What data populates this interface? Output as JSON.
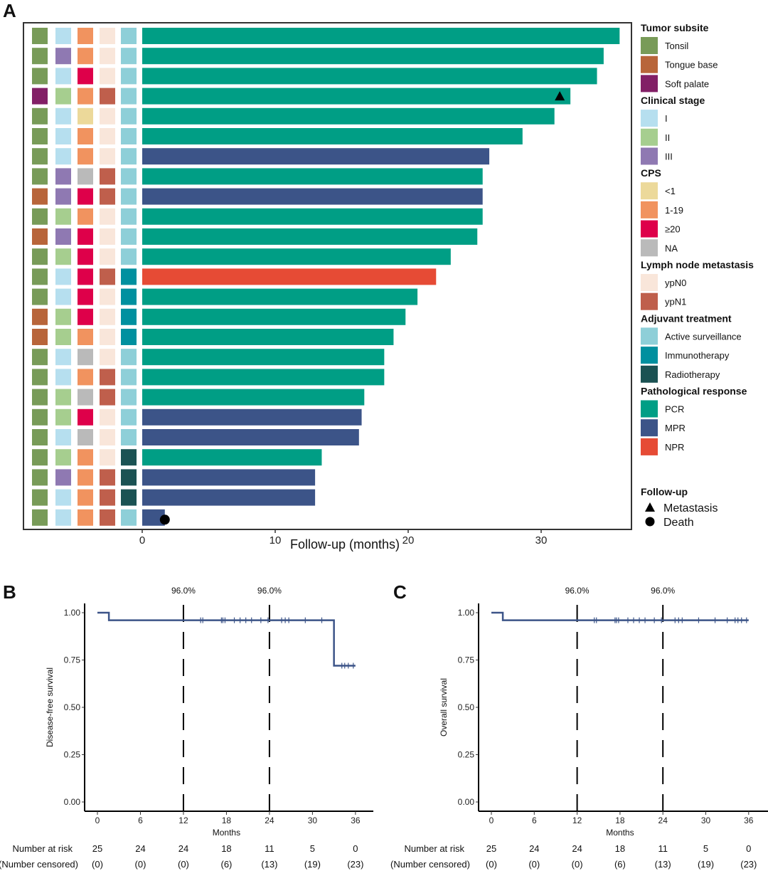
{
  "chart_data": [
    {
      "panel": "A",
      "type": "bar",
      "orientation": "horizontal",
      "title": "",
      "xlabel": "Follow-up (months)",
      "xlim": [
        0,
        36
      ],
      "xticks": [
        0,
        10,
        20,
        30
      ],
      "legend": [
        {
          "title": "Tumor subsite",
          "items": [
            {
              "label": "Tonsil",
              "color": "#789B58"
            },
            {
              "label": "Tongue base",
              "color": "#B8653A"
            },
            {
              "label": "Soft palate",
              "color": "#821F66"
            }
          ]
        },
        {
          "title": "Clinical stage",
          "items": [
            {
              "label": "I",
              "color": "#B6DFEF"
            },
            {
              "label": "II",
              "color": "#A6CE8F"
            },
            {
              "label": "III",
              "color": "#8F79B2"
            }
          ]
        },
        {
          "title": "CPS",
          "items": [
            {
              "label": "<1",
              "color": "#ECD99A"
            },
            {
              "label": "1-19",
              "color": "#F1935F"
            },
            {
              "label": "≥20",
              "color": "#DE004A"
            },
            {
              "label": "NA",
              "color": "#BABABA"
            }
          ]
        },
        {
          "title": "Lymph node metastasis",
          "items": [
            {
              "label": "ypN0",
              "color": "#F9E6DA"
            },
            {
              "label": "ypN1",
              "color": "#BF5F4C"
            }
          ]
        },
        {
          "title": "Adjuvant treatment",
          "items": [
            {
              "label": "Active surveillance",
              "color": "#8ECFD8"
            },
            {
              "label": "Immunotherapy",
              "color": "#00909F"
            },
            {
              "label": "Radiotherapy",
              "color": "#1B5253"
            }
          ]
        },
        {
          "title": "Pathological response",
          "items": [
            {
              "label": "PCR",
              "color": "#009E85"
            },
            {
              "label": "MPR",
              "color": "#3C5488"
            },
            {
              "label": "NPR",
              "color": "#E64B35"
            }
          ]
        }
      ],
      "followup_legend": {
        "title": "Follow-up",
        "items": [
          {
            "label": "Metastasis",
            "symbol": "triangle"
          },
          {
            "label": "Death",
            "symbol": "circle"
          }
        ]
      },
      "patients": [
        {
          "subsite": "Tonsil",
          "stage": "I",
          "cps": "1-19",
          "ln": "ypN0",
          "adjuvant": "Active surveillance",
          "response": "PCR",
          "followup": 35.9
        },
        {
          "subsite": "Tonsil",
          "stage": "III",
          "cps": "1-19",
          "ln": "ypN0",
          "adjuvant": "Active surveillance",
          "response": "PCR",
          "followup": 34.7
        },
        {
          "subsite": "Tonsil",
          "stage": "I",
          "cps": "≥20",
          "ln": "ypN0",
          "adjuvant": "Active surveillance",
          "response": "PCR",
          "followup": 34.2
        },
        {
          "subsite": "Soft palate",
          "stage": "II",
          "cps": "1-19",
          "ln": "ypN1",
          "adjuvant": "Active surveillance",
          "response": "PCR",
          "followup": 32.2,
          "event": "Metastasis",
          "event_time": 31.4
        },
        {
          "subsite": "Tonsil",
          "stage": "I",
          "cps": "<1",
          "ln": "ypN0",
          "adjuvant": "Active surveillance",
          "response": "PCR",
          "followup": 31.0
        },
        {
          "subsite": "Tonsil",
          "stage": "I",
          "cps": "1-19",
          "ln": "ypN0",
          "adjuvant": "Active surveillance",
          "response": "PCR",
          "followup": 28.6
        },
        {
          "subsite": "Tonsil",
          "stage": "I",
          "cps": "1-19",
          "ln": "ypN0",
          "adjuvant": "Active surveillance",
          "response": "MPR",
          "followup": 26.1
        },
        {
          "subsite": "Tonsil",
          "stage": "III",
          "cps": "NA",
          "ln": "ypN1",
          "adjuvant": "Active surveillance",
          "response": "PCR",
          "followup": 25.6
        },
        {
          "subsite": "Tongue base",
          "stage": "III",
          "cps": "≥20",
          "ln": "ypN1",
          "adjuvant": "Active surveillance",
          "response": "MPR",
          "followup": 25.6
        },
        {
          "subsite": "Tonsil",
          "stage": "II",
          "cps": "1-19",
          "ln": "ypN0",
          "adjuvant": "Active surveillance",
          "response": "PCR",
          "followup": 25.6
        },
        {
          "subsite": "Tongue base",
          "stage": "III",
          "cps": "≥20",
          "ln": "ypN0",
          "adjuvant": "Active surveillance",
          "response": "PCR",
          "followup": 25.2
        },
        {
          "subsite": "Tonsil",
          "stage": "II",
          "cps": "≥20",
          "ln": "ypN0",
          "adjuvant": "Active surveillance",
          "response": "PCR",
          "followup": 23.2
        },
        {
          "subsite": "Tonsil",
          "stage": "I",
          "cps": "≥20",
          "ln": "ypN1",
          "adjuvant": "Immunotherapy",
          "response": "NPR",
          "followup": 22.1
        },
        {
          "subsite": "Tonsil",
          "stage": "I",
          "cps": "≥20",
          "ln": "ypN0",
          "adjuvant": "Immunotherapy",
          "response": "PCR",
          "followup": 20.7
        },
        {
          "subsite": "Tongue base",
          "stage": "II",
          "cps": "≥20",
          "ln": "ypN0",
          "adjuvant": "Immunotherapy",
          "response": "PCR",
          "followup": 19.8
        },
        {
          "subsite": "Tongue base",
          "stage": "II",
          "cps": "1-19",
          "ln": "ypN0",
          "adjuvant": "Immunotherapy",
          "response": "PCR",
          "followup": 18.9
        },
        {
          "subsite": "Tonsil",
          "stage": "I",
          "cps": "NA",
          "ln": "ypN0",
          "adjuvant": "Active surveillance",
          "response": "PCR",
          "followup": 18.2
        },
        {
          "subsite": "Tonsil",
          "stage": "I",
          "cps": "1-19",
          "ln": "ypN1",
          "adjuvant": "Active surveillance",
          "response": "PCR",
          "followup": 18.2
        },
        {
          "subsite": "Tonsil",
          "stage": "II",
          "cps": "NA",
          "ln": "ypN1",
          "adjuvant": "Active surveillance",
          "response": "PCR",
          "followup": 16.7
        },
        {
          "subsite": "Tonsil",
          "stage": "II",
          "cps": "≥20",
          "ln": "ypN0",
          "adjuvant": "Active surveillance",
          "response": "MPR",
          "followup": 16.5
        },
        {
          "subsite": "Tonsil",
          "stage": "I",
          "cps": "NA",
          "ln": "ypN0",
          "adjuvant": "Active surveillance",
          "response": "MPR",
          "followup": 16.3
        },
        {
          "subsite": "Tonsil",
          "stage": "II",
          "cps": "1-19",
          "ln": "ypN0",
          "adjuvant": "Radiotherapy",
          "response": "PCR",
          "followup": 13.5
        },
        {
          "subsite": "Tonsil",
          "stage": "III",
          "cps": "1-19",
          "ln": "ypN1",
          "adjuvant": "Radiotherapy",
          "response": "MPR",
          "followup": 13.0
        },
        {
          "subsite": "Tonsil",
          "stage": "I",
          "cps": "1-19",
          "ln": "ypN1",
          "adjuvant": "Radiotherapy",
          "response": "MPR",
          "followup": 13.0
        },
        {
          "subsite": "Tonsil",
          "stage": "I",
          "cps": "1-19",
          "ln": "ypN1",
          "adjuvant": "Active surveillance",
          "response": "MPR",
          "followup": 1.7,
          "event": "Death",
          "event_time": 1.7
        }
      ]
    },
    {
      "panel": "B",
      "type": "line",
      "subtype": "kaplan-meier",
      "ylabel": "Disease-free survival",
      "xlabel": "Months",
      "xlim": [
        0,
        36
      ],
      "ylim": [
        0,
        1
      ],
      "xticks": [
        0,
        6,
        12,
        18,
        24,
        30,
        36
      ],
      "yticks": [
        "0.00",
        "0.25",
        "0.50",
        "0.75",
        "1.00"
      ],
      "line_color": "#3C5488",
      "steps": [
        [
          0,
          1.0
        ],
        [
          1.6,
          0.96
        ],
        [
          33.0,
          0.72
        ],
        [
          36,
          0.72
        ]
      ],
      "censor_times": [
        14.4,
        14.7,
        17.3,
        17.5,
        17.8,
        19.1,
        19.9,
        20.7,
        21.5,
        22.8,
        23.8,
        25.7,
        26.2,
        26.7,
        29.0,
        31.3,
        34.1,
        34.5,
        35.0,
        35.7
      ],
      "reference_lines": [
        {
          "x": 12,
          "label": "96.0%"
        },
        {
          "x": 24,
          "label": "96.0%"
        }
      ],
      "risk_table": {
        "row_labels": [
          "Number at risk",
          "(Number censored)"
        ],
        "at_risk": [
          "25",
          "24",
          "24",
          "18",
          "11",
          "5",
          "0"
        ],
        "censored": [
          "(0)",
          "(0)",
          "(0)",
          "(6)",
          "(13)",
          "(19)",
          "(23)"
        ]
      }
    },
    {
      "panel": "C",
      "type": "line",
      "subtype": "kaplan-meier",
      "ylabel": "Overall survival",
      "xlabel": "Months",
      "xlim": [
        0,
        36
      ],
      "ylim": [
        0,
        1
      ],
      "xticks": [
        0,
        6,
        12,
        18,
        24,
        30,
        36
      ],
      "yticks": [
        "0.00",
        "0.25",
        "0.50",
        "0.75",
        "1.00"
      ],
      "line_color": "#3C5488",
      "steps": [
        [
          0,
          1.0
        ],
        [
          1.6,
          0.96
        ],
        [
          36,
          0.96
        ]
      ],
      "censor_times": [
        14.4,
        14.7,
        17.3,
        17.5,
        17.8,
        19.1,
        19.9,
        20.7,
        21.5,
        22.8,
        23.8,
        25.7,
        26.2,
        26.7,
        29.0,
        31.3,
        33.0,
        34.1,
        34.5,
        35.0,
        35.7
      ],
      "reference_lines": [
        {
          "x": 12,
          "label": "96.0%"
        },
        {
          "x": 24,
          "label": "96.0%"
        }
      ],
      "risk_table": {
        "row_labels": [
          "Number at risk",
          "(Number censored)"
        ],
        "at_risk": [
          "25",
          "24",
          "24",
          "18",
          "11",
          "5",
          "0"
        ],
        "censored": [
          "(0)",
          "(0)",
          "(0)",
          "(6)",
          "(13)",
          "(19)",
          "(23)"
        ]
      }
    }
  ],
  "panel_labels": [
    "A",
    "B",
    "C"
  ]
}
